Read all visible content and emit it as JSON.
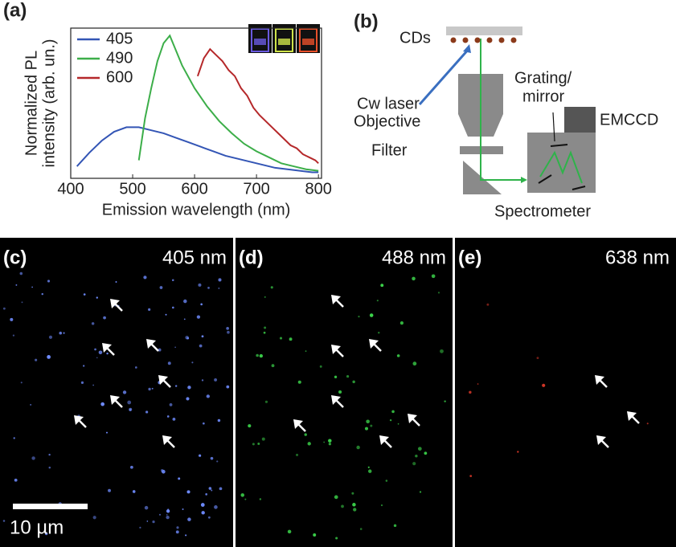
{
  "panel_labels": [
    "(a)",
    "(b)",
    "(c)",
    "(d)",
    "(e)"
  ],
  "chart_data": {
    "type": "line",
    "x_label": "Emission wavelength (nm)",
    "y_label": [
      "Normalized PL",
      "intensity (arb. un.)"
    ],
    "xlim": [
      400,
      805
    ],
    "xticks": [
      400,
      500,
      600,
      700,
      800
    ],
    "ylim": [
      0,
      1
    ],
    "legend": "upper left",
    "series": [
      {
        "name": "405",
        "color": "#3355b5",
        "x": [
          410,
          430,
          450,
          470,
          490,
          510,
          530,
          550,
          570,
          590,
          610,
          630,
          650,
          670,
          690,
          710,
          730,
          750,
          770,
          790,
          800
        ],
        "values": [
          0.08,
          0.17,
          0.25,
          0.31,
          0.34,
          0.34,
          0.32,
          0.3,
          0.27,
          0.24,
          0.21,
          0.18,
          0.15,
          0.13,
          0.11,
          0.09,
          0.07,
          0.06,
          0.05,
          0.04,
          0.04
        ]
      },
      {
        "name": "490",
        "color": "#3cae49",
        "x": [
          510,
          520,
          530,
          540,
          550,
          560,
          570,
          580,
          600,
          620,
          640,
          660,
          680,
          700,
          720,
          740,
          760,
          780,
          800
        ],
        "values": [
          0.12,
          0.4,
          0.6,
          0.78,
          0.9,
          0.95,
          0.85,
          0.75,
          0.6,
          0.48,
          0.38,
          0.3,
          0.23,
          0.18,
          0.14,
          0.1,
          0.08,
          0.06,
          0.05
        ]
      },
      {
        "name": "600",
        "color": "#b5282a",
        "x": [
          605,
          615,
          625,
          635,
          645,
          655,
          665,
          675,
          685,
          695,
          705,
          715,
          725,
          735,
          745,
          755,
          765,
          775,
          785,
          795,
          800
        ],
        "values": [
          0.68,
          0.8,
          0.86,
          0.82,
          0.78,
          0.72,
          0.68,
          0.6,
          0.55,
          0.47,
          0.42,
          0.38,
          0.34,
          0.3,
          0.26,
          0.22,
          0.2,
          0.16,
          0.14,
          0.12,
          0.1
        ]
      }
    ]
  },
  "diagram": {
    "cds": "CDs",
    "laser": "Cw laser",
    "objective": "Objective",
    "filter": "Filter",
    "grating": [
      "Grating/",
      "mirror"
    ],
    "camera": "EMCCD",
    "spectrometer": "Spectrometer"
  },
  "images": {
    "wavelengths": [
      "405 nm",
      "488 nm",
      "638 nm"
    ],
    "scale_bar": "10 µm"
  }
}
